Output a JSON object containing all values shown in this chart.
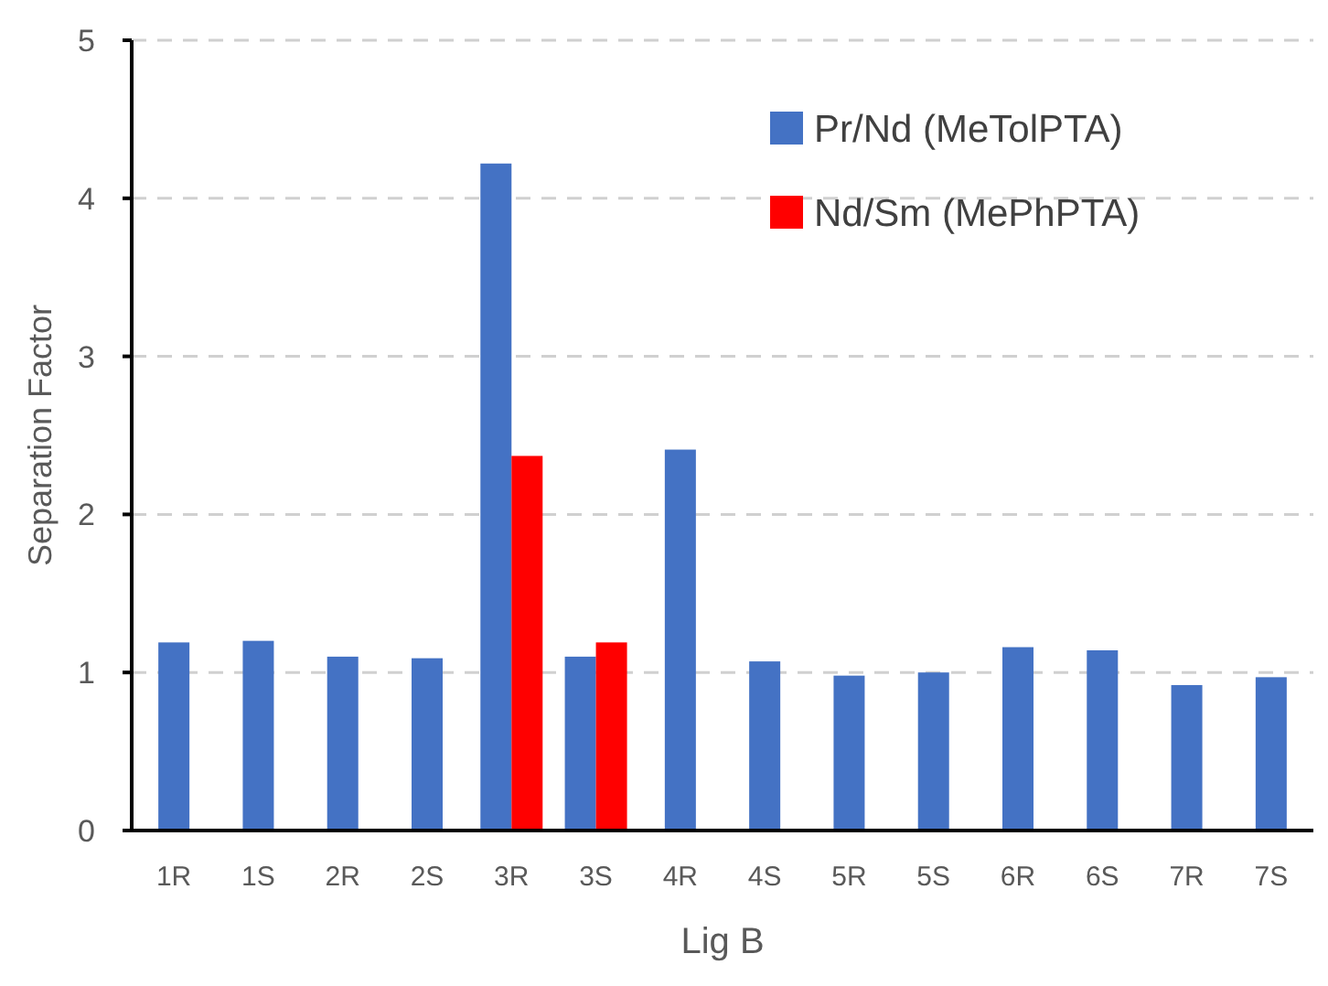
{
  "chart_data": {
    "type": "bar",
    "xlabel": "Lig B",
    "ylabel": "Separation Factor",
    "categories": [
      "1R",
      "1S",
      "2R",
      "2S",
      "3R",
      "3S",
      "4R",
      "4S",
      "5R",
      "5S",
      "6R",
      "6S",
      "7R",
      "7S"
    ],
    "series": [
      {
        "name": "Pr/Nd (MeTolPTA)",
        "color": "#4472c4",
        "values": [
          1.19,
          1.2,
          1.1,
          1.09,
          4.22,
          1.1,
          2.41,
          1.07,
          0.98,
          1.0,
          1.16,
          1.14,
          0.92,
          0.97
        ]
      },
      {
        "name": "Nd/Sm (MePhPTA)",
        "color": "#ff0000",
        "values": [
          null,
          null,
          null,
          null,
          2.37,
          1.19,
          null,
          null,
          null,
          null,
          null,
          null,
          null,
          null
        ]
      }
    ],
    "ylim": [
      0,
      5
    ],
    "yticks": [
      0,
      1,
      2,
      3,
      4,
      5
    ],
    "grid": "y",
    "legend": "top right"
  }
}
